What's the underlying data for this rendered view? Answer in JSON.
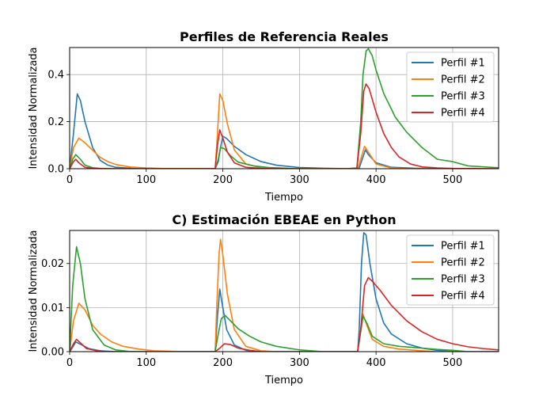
{
  "chart_data": [
    {
      "type": "line",
      "title": "Perfiles de Referencia Reales",
      "xlabel": "Tiempo",
      "ylabel": "Intensidad Normalizada",
      "xlim": [
        0,
        560
      ],
      "ylim": [
        0,
        0.515
      ],
      "xticks": [
        0,
        100,
        200,
        300,
        400,
        500
      ],
      "yticks": [
        0.0,
        0.2,
        0.4
      ],
      "ytick_labels": [
        "0.0",
        "0.2",
        "0.4"
      ],
      "grid": true,
      "legend": "top-right",
      "series": [
        {
          "name": "Perfil #1",
          "color": "#1f77b4",
          "points": [
            [
              0,
              0
            ],
            [
              5,
              0.15
            ],
            [
              10,
              0.318
            ],
            [
              14,
              0.29
            ],
            [
              20,
              0.2
            ],
            [
              30,
              0.09
            ],
            [
              40,
              0.035
            ],
            [
              50,
              0.015
            ],
            [
              60,
              0.006
            ],
            [
              80,
              0.002
            ],
            [
              100,
              0
            ],
            [
              190,
              0
            ],
            [
              194,
              0.03
            ],
            [
              197,
              0.09
            ],
            [
              200,
              0.138
            ],
            [
              205,
              0.128
            ],
            [
              215,
              0.095
            ],
            [
              230,
              0.06
            ],
            [
              250,
              0.03
            ],
            [
              270,
              0.015
            ],
            [
              300,
              0.005
            ],
            [
              330,
              0.002
            ],
            [
              370,
              0
            ],
            [
              378,
              0.002
            ],
            [
              383,
              0.05
            ],
            [
              386,
              0.08
            ],
            [
              390,
              0.06
            ],
            [
              400,
              0.025
            ],
            [
              420,
              0.006
            ],
            [
              450,
              0.002
            ],
            [
              500,
              0
            ],
            [
              560,
              0
            ]
          ]
        },
        {
          "name": "Perfil #2",
          "color": "#ff7f0e",
          "points": [
            [
              0,
              0
            ],
            [
              5,
              0.09
            ],
            [
              12,
              0.13
            ],
            [
              20,
              0.11
            ],
            [
              30,
              0.078
            ],
            [
              40,
              0.048
            ],
            [
              50,
              0.03
            ],
            [
              60,
              0.018
            ],
            [
              80,
              0.007
            ],
            [
              100,
              0.003
            ],
            [
              120,
              0.001
            ],
            [
              190,
              0
            ],
            [
              193,
              0.15
            ],
            [
              196,
              0.318
            ],
            [
              200,
              0.29
            ],
            [
              206,
              0.19
            ],
            [
              215,
              0.08
            ],
            [
              230,
              0.02
            ],
            [
              250,
              0.004
            ],
            [
              280,
              0
            ],
            [
              376,
              0
            ],
            [
              380,
              0.04
            ],
            [
              385,
              0.095
            ],
            [
              390,
              0.07
            ],
            [
              400,
              0.02
            ],
            [
              420,
              0.003
            ],
            [
              440,
              0
            ],
            [
              560,
              0
            ]
          ]
        },
        {
          "name": "Perfil #3",
          "color": "#2ca02c",
          "points": [
            [
              0,
              0
            ],
            [
              4,
              0.04
            ],
            [
              8,
              0.06
            ],
            [
              14,
              0.04
            ],
            [
              20,
              0.015
            ],
            [
              30,
              0.004
            ],
            [
              40,
              0.001
            ],
            [
              60,
              0
            ],
            [
              190,
              0
            ],
            [
              194,
              0.04
            ],
            [
              197,
              0.09
            ],
            [
              202,
              0.085
            ],
            [
              210,
              0.055
            ],
            [
              220,
              0.028
            ],
            [
              240,
              0.012
            ],
            [
              260,
              0.005
            ],
            [
              290,
              0.001
            ],
            [
              360,
              0
            ],
            [
              375,
              0.003
            ],
            [
              380,
              0.2
            ],
            [
              383,
              0.4
            ],
            [
              387,
              0.5
            ],
            [
              390,
              0.51
            ],
            [
              395,
              0.48
            ],
            [
              400,
              0.42
            ],
            [
              410,
              0.32
            ],
            [
              425,
              0.22
            ],
            [
              440,
              0.155
            ],
            [
              460,
              0.09
            ],
            [
              480,
              0.04
            ],
            [
              500,
              0.03
            ],
            [
              520,
              0.012
            ],
            [
              540,
              0.008
            ],
            [
              560,
              0.004
            ]
          ]
        },
        {
          "name": "Perfil #4",
          "color": "#d62728",
          "points": [
            [
              0,
              0
            ],
            [
              5,
              0.03
            ],
            [
              8,
              0.04
            ],
            [
              12,
              0.025
            ],
            [
              20,
              0.006
            ],
            [
              30,
              0.001
            ],
            [
              50,
              0
            ],
            [
              190,
              0
            ],
            [
              193,
              0.1
            ],
            [
              196,
              0.165
            ],
            [
              200,
              0.13
            ],
            [
              206,
              0.07
            ],
            [
              215,
              0.025
            ],
            [
              230,
              0.006
            ],
            [
              250,
              0.001
            ],
            [
              270,
              0
            ],
            [
              375,
              0
            ],
            [
              380,
              0.15
            ],
            [
              384,
              0.33
            ],
            [
              387,
              0.36
            ],
            [
              391,
              0.34
            ],
            [
              400,
              0.24
            ],
            [
              410,
              0.15
            ],
            [
              420,
              0.09
            ],
            [
              430,
              0.05
            ],
            [
              445,
              0.02
            ],
            [
              460,
              0.008
            ],
            [
              480,
              0.003
            ],
            [
              500,
              0.001
            ],
            [
              560,
              0
            ]
          ]
        }
      ]
    },
    {
      "type": "line",
      "title": "C) Estimación EBEAE en Python",
      "xlabel": "Tiempo",
      "ylabel": "Intensidad Normalizada",
      "xlim": [
        0,
        560
      ],
      "ylim": [
        0,
        0.0275
      ],
      "xticks": [
        0,
        100,
        200,
        300,
        400,
        500
      ],
      "yticks": [
        0.0,
        0.01,
        0.02
      ],
      "ytick_labels": [
        "0.00",
        "0.01",
        "0.02"
      ],
      "grid": true,
      "legend": "top-right",
      "series": [
        {
          "name": "Perfil #1",
          "color": "#1f77b4",
          "points": [
            [
              0,
              0
            ],
            [
              4,
              0.001
            ],
            [
              8,
              0.0022
            ],
            [
              14,
              0.0017
            ],
            [
              25,
              0.0007
            ],
            [
              40,
              0.0002
            ],
            [
              60,
              0
            ],
            [
              190,
              0
            ],
            [
              193,
              0.008
            ],
            [
              196,
              0.0142
            ],
            [
              199,
              0.011
            ],
            [
              205,
              0.005
            ],
            [
              215,
              0.0015
            ],
            [
              230,
              0.0003
            ],
            [
              250,
              0
            ],
            [
              376,
              0
            ],
            [
              378,
              0.005
            ],
            [
              381,
              0.02
            ],
            [
              384,
              0.027
            ],
            [
              387,
              0.0265
            ],
            [
              392,
              0.02
            ],
            [
              400,
              0.012
            ],
            [
              410,
              0.0065
            ],
            [
              420,
              0.004
            ],
            [
              440,
              0.0018
            ],
            [
              460,
              0.0008
            ],
            [
              480,
              0.0003
            ],
            [
              500,
              0
            ],
            [
              560,
              0
            ]
          ]
        },
        {
          "name": "Perfil #2",
          "color": "#ff7f0e",
          "points": [
            [
              0,
              0
            ],
            [
              5,
              0.007
            ],
            [
              12,
              0.011
            ],
            [
              20,
              0.0095
            ],
            [
              30,
              0.006
            ],
            [
              40,
              0.004
            ],
            [
              55,
              0.0022
            ],
            [
              70,
              0.0012
            ],
            [
              90,
              0.0006
            ],
            [
              110,
              0.0002
            ],
            [
              150,
              0
            ],
            [
              190,
              0
            ],
            [
              192,
              0.01
            ],
            [
              195,
              0.022
            ],
            [
              197,
              0.0255
            ],
            [
              200,
              0.022
            ],
            [
              206,
              0.013
            ],
            [
              215,
              0.005
            ],
            [
              230,
              0.0012
            ],
            [
              250,
              0.0002
            ],
            [
              270,
              0
            ],
            [
              376,
              0
            ],
            [
              379,
              0.004
            ],
            [
              383,
              0.0085
            ],
            [
              388,
              0.006
            ],
            [
              395,
              0.0028
            ],
            [
              410,
              0.0012
            ],
            [
              430,
              0.0006
            ],
            [
              460,
              0.0002
            ],
            [
              480,
              0
            ],
            [
              560,
              0
            ]
          ]
        },
        {
          "name": "Perfil #3",
          "color": "#2ca02c",
          "points": [
            [
              0,
              0
            ],
            [
              4,
              0.015
            ],
            [
              9,
              0.0238
            ],
            [
              14,
              0.02
            ],
            [
              20,
              0.012
            ],
            [
              30,
              0.005
            ],
            [
              45,
              0.0015
            ],
            [
              60,
              0.0004
            ],
            [
              80,
              0
            ],
            [
              190,
              0
            ],
            [
              194,
              0.004
            ],
            [
              198,
              0.0075
            ],
            [
              203,
              0.0082
            ],
            [
              210,
              0.007
            ],
            [
              220,
              0.0052
            ],
            [
              235,
              0.0035
            ],
            [
              250,
              0.0022
            ],
            [
              270,
              0.0012
            ],
            [
              300,
              0.0004
            ],
            [
              330,
              0
            ],
            [
              376,
              0
            ],
            [
              380,
              0.0045
            ],
            [
              383,
              0.008
            ],
            [
              388,
              0.0065
            ],
            [
              395,
              0.0035
            ],
            [
              410,
              0.0018
            ],
            [
              430,
              0.0012
            ],
            [
              460,
              0.0008
            ],
            [
              480,
              0.0005
            ],
            [
              500,
              0.0003
            ],
            [
              520,
              0
            ],
            [
              560,
              0
            ]
          ]
        },
        {
          "name": "Perfil #4",
          "color": "#d62728",
          "points": [
            [
              0,
              0
            ],
            [
              5,
              0.0018
            ],
            [
              9,
              0.0028
            ],
            [
              14,
              0.002
            ],
            [
              22,
              0.0007
            ],
            [
              35,
              0.0002
            ],
            [
              50,
              0
            ],
            [
              190,
              0
            ],
            [
              196,
              0.0008
            ],
            [
              202,
              0.0018
            ],
            [
              210,
              0.0016
            ],
            [
              220,
              0.0008
            ],
            [
              235,
              0.0003
            ],
            [
              250,
              0
            ],
            [
              376,
              0
            ],
            [
              380,
              0.005
            ],
            [
              385,
              0.015
            ],
            [
              390,
              0.0168
            ],
            [
              395,
              0.016
            ],
            [
              405,
              0.014
            ],
            [
              420,
              0.0105
            ],
            [
              440,
              0.007
            ],
            [
              460,
              0.0045
            ],
            [
              480,
              0.0028
            ],
            [
              500,
              0.0018
            ],
            [
              520,
              0.0011
            ],
            [
              540,
              0.0007
            ],
            [
              560,
              0.0004
            ]
          ]
        }
      ]
    }
  ]
}
